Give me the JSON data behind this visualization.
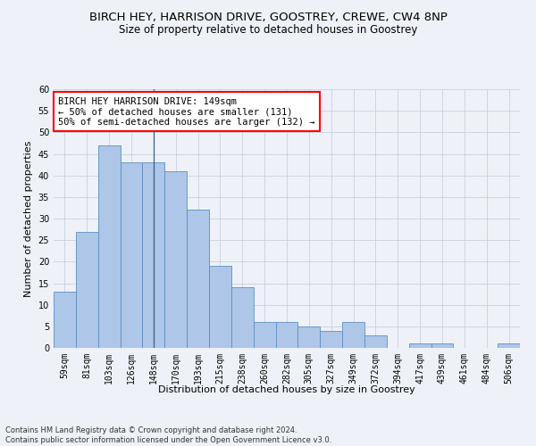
{
  "title": "BIRCH HEY, HARRISON DRIVE, GOOSTREY, CREWE, CW4 8NP",
  "subtitle": "Size of property relative to detached houses in Goostrey",
  "xlabel": "Distribution of detached houses by size in Goostrey",
  "ylabel": "Number of detached properties",
  "bar_color": "#aec6e8",
  "bar_edge_color": "#5a8fc2",
  "vline_color": "#3a5f8a",
  "background_color": "#eef2f8",
  "categories": [
    "59sqm",
    "81sqm",
    "103sqm",
    "126sqm",
    "148sqm",
    "170sqm",
    "193sqm",
    "215sqm",
    "238sqm",
    "260sqm",
    "282sqm",
    "305sqm",
    "327sqm",
    "349sqm",
    "372sqm",
    "394sqm",
    "417sqm",
    "439sqm",
    "461sqm",
    "484sqm",
    "506sqm"
  ],
  "values": [
    13,
    27,
    47,
    43,
    43,
    41,
    32,
    19,
    14,
    6,
    6,
    5,
    4,
    6,
    3,
    0,
    1,
    1,
    0,
    0,
    1
  ],
  "ylim": [
    0,
    60
  ],
  "yticks": [
    0,
    5,
    10,
    15,
    20,
    25,
    30,
    35,
    40,
    45,
    50,
    55,
    60
  ],
  "vline_index": 4,
  "annotation_text": "BIRCH HEY HARRISON DRIVE: 149sqm\n← 50% of detached houses are smaller (131)\n50% of semi-detached houses are larger (132) →",
  "annotation_box_color": "white",
  "annotation_box_edge_color": "red",
  "footnote": "Contains HM Land Registry data © Crown copyright and database right 2024.\nContains public sector information licensed under the Open Government Licence v3.0.",
  "grid_color": "#c8d0dc",
  "title_fontsize": 9.5,
  "subtitle_fontsize": 8.5,
  "axis_label_fontsize": 8,
  "tick_fontsize": 7,
  "annotation_fontsize": 7.5,
  "footnote_fontsize": 6
}
